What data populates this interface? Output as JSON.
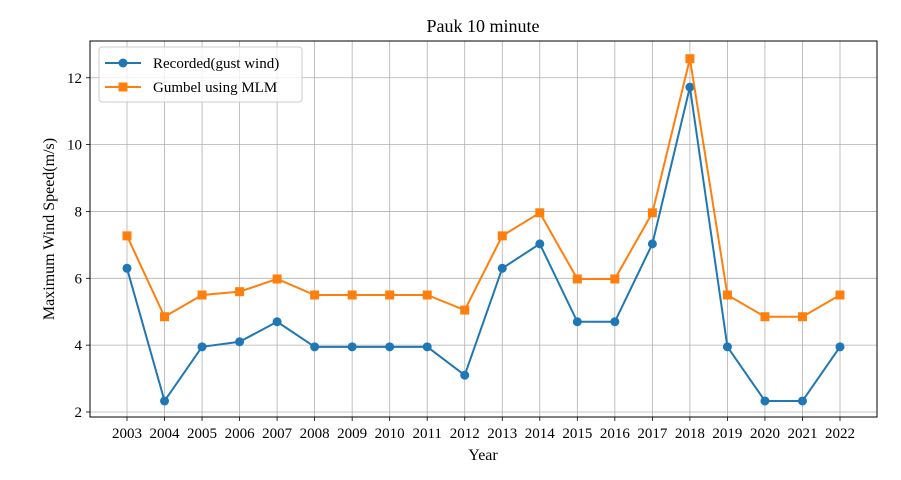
{
  "chart_data": {
    "type": "line",
    "title": "Pauk 10 minute",
    "xlabel": "Year",
    "ylabel": "Maximum Wind Speed(m/s)",
    "categories": [
      "2003",
      "2004",
      "2005",
      "2006",
      "2007",
      "2008",
      "2009",
      "2010",
      "2011",
      "2012",
      "2013",
      "2014",
      "2015",
      "2016",
      "2017",
      "2018",
      "2019",
      "2020",
      "2021",
      "2022"
    ],
    "ylim": [
      1.85,
      13.1
    ],
    "yticks": [
      2,
      4,
      6,
      8,
      10,
      12
    ],
    "grid": true,
    "legend_position": "top-left",
    "series": [
      {
        "name": "Recorded(gust wind)",
        "color": "#1f77b4",
        "marker": "circle",
        "values": [
          6.3,
          2.33,
          3.95,
          4.1,
          4.7,
          3.95,
          3.95,
          3.95,
          3.95,
          3.1,
          6.3,
          7.03,
          4.7,
          4.7,
          7.03,
          11.72,
          3.95,
          2.33,
          2.33,
          3.95
        ]
      },
      {
        "name": "Gumbel using MLM",
        "color": "#ff7f0e",
        "marker": "square",
        "values": [
          7.27,
          4.85,
          5.5,
          5.6,
          5.98,
          5.5,
          5.5,
          5.5,
          5.5,
          5.05,
          7.27,
          7.96,
          5.98,
          5.98,
          7.96,
          12.57,
          5.5,
          4.85,
          4.85,
          5.5
        ]
      }
    ]
  }
}
